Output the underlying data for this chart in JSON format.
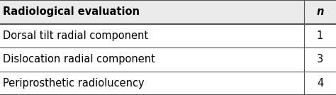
{
  "header_col1": "Radiological evaluation",
  "header_col2": "n",
  "rows": [
    [
      "Dorsal tilt radial component",
      "1"
    ],
    [
      "Dislocation radial component",
      "3"
    ],
    [
      "Periprosthetic radiolucency",
      "4"
    ]
  ],
  "header_bg": "#ebebeb",
  "row_bg": "#ffffff",
  "border_color": "#555555",
  "header_fontsize": 10.5,
  "row_fontsize": 10.5,
  "fig_width": 4.74,
  "fig_height": 1.34,
  "dpi": 100,
  "col_split": 0.905
}
